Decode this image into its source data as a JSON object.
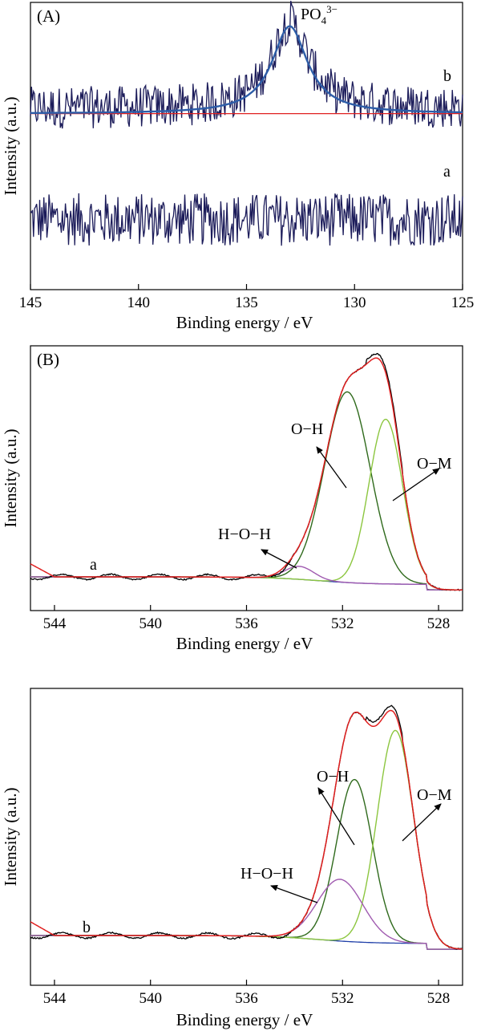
{
  "chart_data": [
    {
      "type": "line",
      "panel_label": "(A)",
      "xlabel": "Binding energy / eV",
      "ylabel": "Intensity (a.u.)",
      "xlim": [
        145,
        125
      ],
      "x_reversed": true,
      "x_ticks": [
        "145",
        "140",
        "135",
        "130",
        "125"
      ],
      "y_ticks": false,
      "peak": {
        "label_main": "PO",
        "label_sub": "4",
        "label_sup": "3−",
        "center": 133.0
      },
      "series": [
        {
          "name": "a",
          "color": "#1c1c5a",
          "kind": "noisy spectrum",
          "offset": 0.0
        },
        {
          "name": "b",
          "color": "#1c1c5a",
          "kind": "noisy spectrum with PO4 peak",
          "offset": 0.48
        },
        {
          "name": "",
          "color": "#e02020",
          "kind": "baseline",
          "offset": 0.48
        },
        {
          "name": "",
          "color": "#2d5da8",
          "kind": "fitted peak",
          "center": 133.0,
          "height": 0.33,
          "width": 1.0
        }
      ],
      "curve_labels": [
        "b",
        "a"
      ]
    },
    {
      "type": "line",
      "panel_label": "(B)",
      "xlabel": "Binding energy / eV",
      "ylabel": "Intensity (a.u.)",
      "xlim": [
        545,
        527
      ],
      "x_reversed": true,
      "x_ticks": [
        "544",
        "540",
        "536",
        "532",
        "528"
      ],
      "y_ticks": false,
      "sample_label": "a",
      "components": [
        {
          "name": "O−H",
          "center": 531.8,
          "height": 0.88,
          "width": 0.95,
          "color": "#2f6a1c"
        },
        {
          "name": "O−M",
          "center": 530.2,
          "height": 0.76,
          "width": 0.7,
          "color": "#8cc63f"
        },
        {
          "name": "H−O−H",
          "center": 533.8,
          "height": 0.06,
          "width": 0.6,
          "color": "#a05bb0"
        }
      ],
      "envelope_color": "#e02020",
      "raw_color": "#000000",
      "background_color": "#1f3fa8",
      "annotations": [
        "O−H",
        "O−M",
        "H−O−H"
      ]
    },
    {
      "type": "line",
      "panel_label": "",
      "xlabel": "Binding energy / eV",
      "ylabel": "Intensity (a.u.)",
      "xlim": [
        545,
        527
      ],
      "x_reversed": true,
      "x_ticks": [
        "544",
        "540",
        "536",
        "532",
        "528"
      ],
      "y_ticks": false,
      "sample_label": "b",
      "components": [
        {
          "name": "O−H",
          "center": 531.5,
          "height": 0.71,
          "width": 0.75,
          "color": "#2f6a1c"
        },
        {
          "name": "O−M",
          "center": 529.8,
          "height": 0.93,
          "width": 0.75,
          "color": "#8cc63f"
        },
        {
          "name": "H−O−H",
          "center": 532.1,
          "height": 0.27,
          "width": 0.95,
          "color": "#a05bb0"
        }
      ],
      "envelope_color": "#e02020",
      "raw_color": "#000000",
      "background_color": "#1f3fa8",
      "annotations": [
        "O−H",
        "O−M",
        "H−O−H"
      ]
    }
  ]
}
